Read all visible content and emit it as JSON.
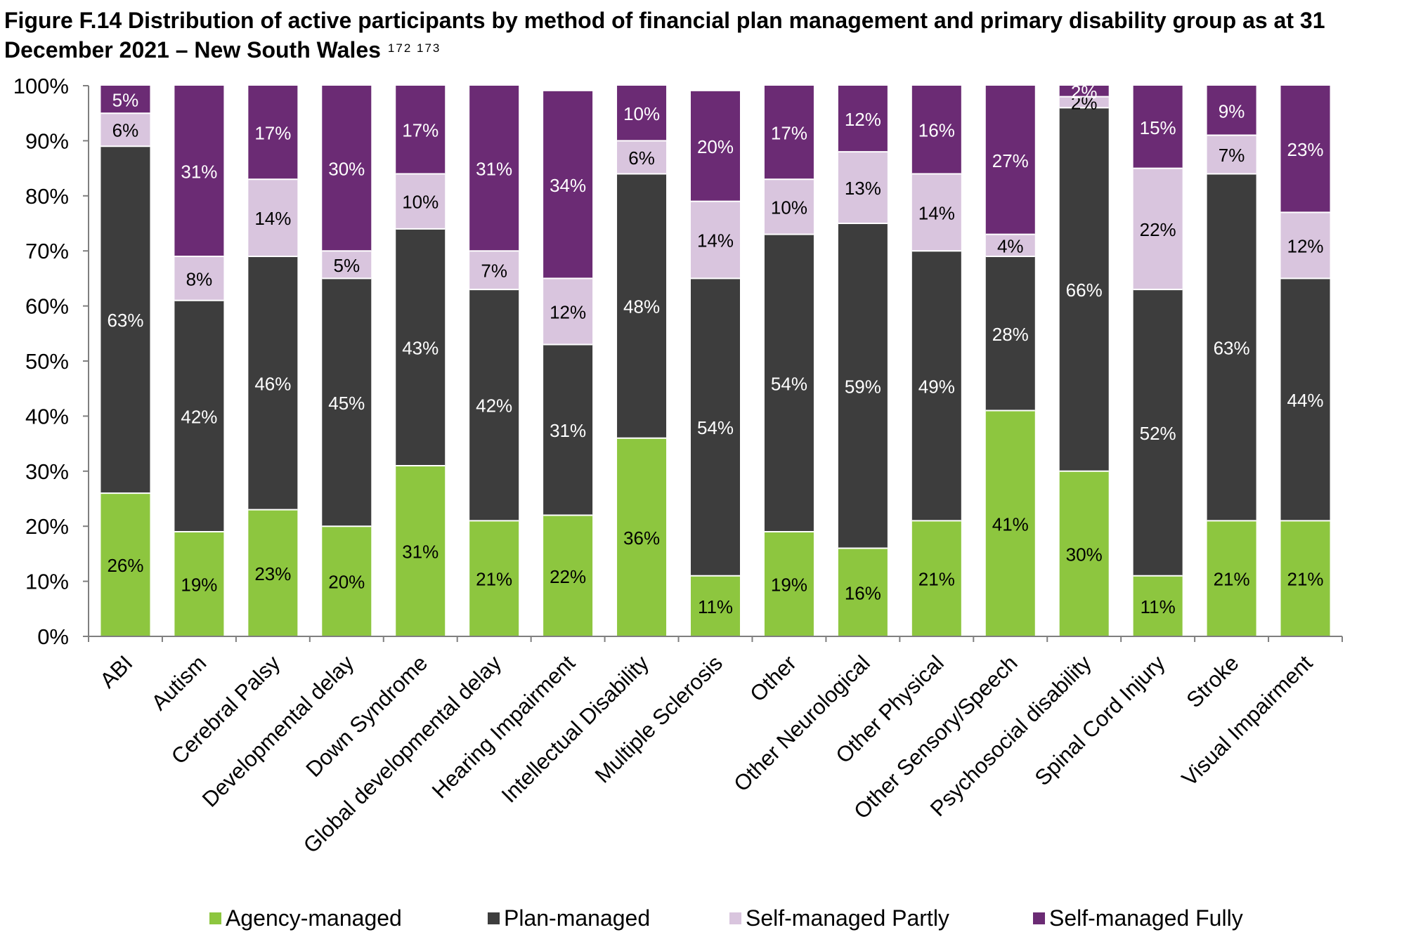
{
  "title": "Figure F.14 Distribution of active participants by method of financial plan management and primary disability group as at 31 December 2021 – New South Wales",
  "footnote_refs": "172 173",
  "chart_data": {
    "type": "bar",
    "stacked": true,
    "percent_stacked": true,
    "categories": [
      "ABI",
      "Autism",
      "Cerebral Palsy",
      "Developmental delay",
      "Down Syndrome",
      "Global developmental delay",
      "Hearing Impairment",
      "Intellectual Disability",
      "Multiple Sclerosis",
      "Other",
      "Other Neurological",
      "Other Physical",
      "Other Sensory/Speech",
      "Psychosocial disability",
      "Spinal Cord Injury",
      "Stroke",
      "Visual Impairment"
    ],
    "series": [
      {
        "name": "Agency-managed",
        "color": "#8dc63f",
        "label_color": "#000000",
        "values": [
          26,
          19,
          23,
          20,
          31,
          21,
          22,
          36,
          11,
          19,
          16,
          21,
          41,
          30,
          11,
          21,
          21
        ],
        "labels": [
          "26%",
          "19%",
          "23%",
          "20%",
          "31%",
          "21%",
          "22%",
          "36%",
          "11%",
          "19%",
          "16%",
          "21%",
          "41%",
          "30%",
          "11%",
          "21%",
          "21%"
        ]
      },
      {
        "name": "Plan-managed",
        "color": "#3d3d3d",
        "label_color": "#ffffff",
        "values": [
          63,
          42,
          46,
          45,
          43,
          42,
          31,
          48,
          54,
          54,
          59,
          49,
          28,
          66,
          52,
          63,
          44
        ],
        "labels": [
          "63%",
          "42%",
          "46%",
          "45%",
          "43%",
          "42%",
          "31%",
          "48%",
          "54%",
          "54%",
          "59%",
          "49%",
          "28%",
          "66%",
          "52%",
          "63%",
          "44%"
        ]
      },
      {
        "name": "Self-managed Partly",
        "color": "#d9c5de",
        "label_color": "#000000",
        "values": [
          6,
          8,
          14,
          5,
          10,
          7,
          12,
          6,
          14,
          10,
          13,
          14,
          4,
          2,
          22,
          7,
          12
        ],
        "labels": [
          "6%",
          "8%",
          "14%",
          "5%",
          "10%",
          "7%",
          "12%",
          "6%",
          "14%",
          "10%",
          "13%",
          "14%",
          "4%",
          "2%",
          "22%",
          "7%",
          "12%"
        ]
      },
      {
        "name": "Self-managed Fully",
        "color": "#6b2b74",
        "label_color": "#ffffff",
        "values": [
          5,
          31,
          17,
          30,
          17,
          31,
          34,
          10,
          20,
          17,
          12,
          16,
          27,
          2,
          15,
          9,
          23
        ],
        "labels": [
          "5%",
          "31%",
          "17%",
          "30%",
          "17%",
          "31%",
          "34%",
          "10%",
          "20%",
          "17%",
          "12%",
          "16%",
          "27%",
          "2%",
          "15%",
          "9%",
          "23%"
        ]
      }
    ],
    "yticks": [
      "0%",
      "10%",
      "20%",
      "30%",
      "40%",
      "50%",
      "60%",
      "70%",
      "80%",
      "90%",
      "100%"
    ],
    "ylim": [
      0,
      100
    ],
    "xlabel": "",
    "ylabel": "",
    "grid": false,
    "legend_position": "bottom"
  }
}
